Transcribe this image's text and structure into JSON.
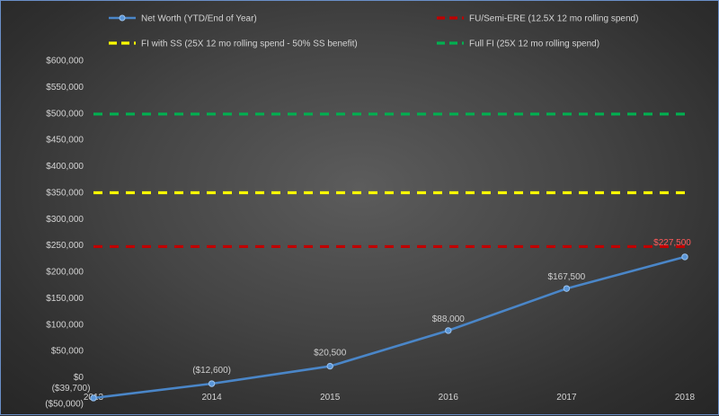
{
  "chart_data": {
    "type": "line",
    "categories": [
      "2013",
      "2014",
      "2015",
      "2016",
      "2017",
      "2018"
    ],
    "ylim": [
      -50000,
      600000
    ],
    "yticks": [
      {
        "value": -50000,
        "label": "($50,000)"
      },
      {
        "value": 0,
        "label": "$0"
      },
      {
        "value": 50000,
        "label": "$50,000"
      },
      {
        "value": 100000,
        "label": "$100,000"
      },
      {
        "value": 150000,
        "label": "$150,000"
      },
      {
        "value": 200000,
        "label": "$200,000"
      },
      {
        "value": 250000,
        "label": "$250,000"
      },
      {
        "value": 300000,
        "label": "$300,000"
      },
      {
        "value": 350000,
        "label": "$350,000"
      },
      {
        "value": 400000,
        "label": "$400,000"
      },
      {
        "value": 450000,
        "label": "$450,000"
      },
      {
        "value": 500000,
        "label": "$500,000"
      },
      {
        "value": 550000,
        "label": "$550,000"
      },
      {
        "value": 600000,
        "label": "$600,000"
      }
    ],
    "grid": false,
    "legend_position": "top",
    "series": [
      {
        "name": "Net Worth (YTD/End of Year)",
        "kind": "line",
        "color": "#4a86c8",
        "values": [
          -39700,
          -12600,
          20500,
          88000,
          167500,
          227500
        ],
        "labels": [
          "($39,700)",
          "($12,600)",
          "$20,500",
          "$88,000",
          "$167,500",
          "$227,500"
        ],
        "label_colors": [
          "#cfcfcf",
          "#cfcfcf",
          "#cfcfcf",
          "#cfcfcf",
          "#cfcfcf",
          "#ff5a5a"
        ]
      },
      {
        "name": "FU/Semi-ERE (12.5X 12 mo rolling spend)",
        "kind": "dashed",
        "color": "#c00000",
        "value": 247000
      },
      {
        "name": "FI with SS  (25X 12 mo rolling spend - 50% SS benefit)",
        "kind": "dashed",
        "color": "#ffff00",
        "value": 349000
      },
      {
        "name": "Full FI  (25X 12 mo rolling spend)",
        "kind": "dashed",
        "color": "#00b050",
        "value": 498000
      }
    ]
  }
}
